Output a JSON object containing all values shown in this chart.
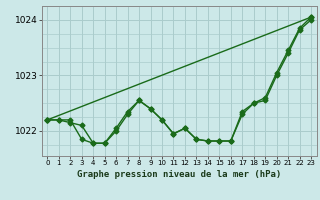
{
  "xlabel": "Graphe pression niveau de la mer (hPa)",
  "background_color": "#cce8e8",
  "grid_color": "#aacccc",
  "line_color": "#1a6b1a",
  "ylim": [
    1021.55,
    1024.25
  ],
  "xlim": [
    -0.5,
    23.5
  ],
  "yticks": [
    1022,
    1023,
    1024
  ],
  "xticks": [
    0,
    1,
    2,
    3,
    4,
    5,
    6,
    7,
    8,
    9,
    10,
    11,
    12,
    13,
    14,
    15,
    16,
    17,
    18,
    19,
    20,
    21,
    22,
    23
  ],
  "series1_x": [
    0,
    1,
    2,
    3,
    4,
    5,
    6,
    7,
    8,
    9,
    10,
    11,
    12,
    13,
    14,
    15,
    16,
    17,
    18,
    19,
    20,
    21,
    22,
    23
  ],
  "series1_y": [
    1022.2,
    1022.2,
    1022.2,
    1021.85,
    1021.78,
    1021.78,
    1022.05,
    1022.35,
    1022.55,
    1022.4,
    1022.2,
    1021.95,
    1022.05,
    1021.85,
    1021.82,
    1021.82,
    1021.82,
    1022.35,
    1022.5,
    1022.55,
    1023.0,
    1023.4,
    1023.82,
    1024.0
  ],
  "series2_x": [
    0,
    1,
    2,
    3,
    4,
    5,
    6,
    7,
    8,
    9,
    10,
    11,
    12,
    13,
    14,
    15,
    16,
    17,
    18,
    19,
    20,
    21,
    22,
    23
  ],
  "series2_y": [
    1022.2,
    1022.2,
    1022.15,
    1022.1,
    1021.78,
    1021.78,
    1022.0,
    1022.3,
    1022.55,
    1022.4,
    1022.2,
    1021.95,
    1022.05,
    1021.85,
    1021.82,
    1021.82,
    1021.82,
    1022.3,
    1022.5,
    1022.6,
    1023.05,
    1023.45,
    1023.85,
    1024.05
  ],
  "series3_x": [
    0,
    23
  ],
  "series3_y": [
    1022.2,
    1024.05
  ],
  "marker_size": 2.5,
  "line_width": 1.0
}
